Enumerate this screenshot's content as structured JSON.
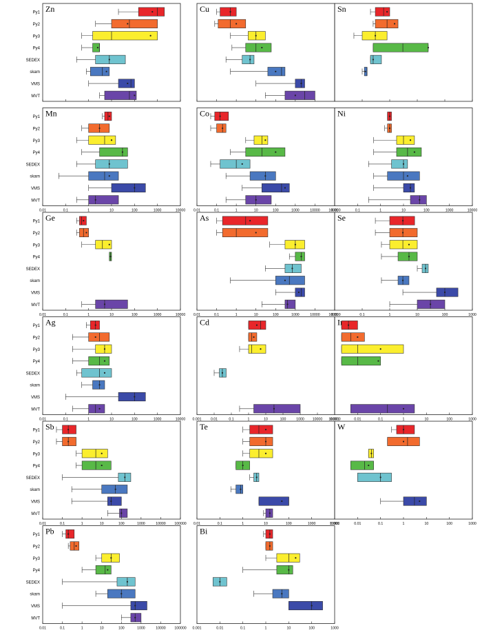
{
  "figure": {
    "categories": [
      "Py1",
      "Py2",
      "Py3",
      "Py4",
      "SEDEX",
      "skarn",
      "VMS",
      "MVT"
    ],
    "series_colors": {
      "Py1": "#e8262a",
      "Py2": "#f26b2e",
      "Py3": "#fbee2e",
      "Py4": "#58b947",
      "SEDEX": "#6fc3cf",
      "skarn": "#4a78c0",
      "VMS": "#3b4aa8",
      "MVT": "#6a45a8"
    }
  },
  "chart_data": [
    {
      "type": "box",
      "element": "Zn",
      "scale": "log",
      "xlim": [
        0.01,
        10000
      ],
      "ticks": [
        "0.01",
        "0.1",
        "1",
        "10",
        "100",
        "1000",
        "10000"
      ],
      "has_axis": false,
      "boxes": {
        "Py1": [
          20,
          150,
          1000,
          2000,
          600
        ],
        "Py2": [
          2,
          10,
          60,
          1000,
          50
        ],
        "Py3": [
          0.5,
          1.5,
          10,
          1000,
          500
        ],
        "Py4": [
          0.5,
          1.5,
          3,
          3,
          2.5
        ],
        "SEDEX": [
          0.3,
          2,
          8,
          40,
          8
        ],
        "skarn": [
          0.8,
          1.2,
          4,
          8,
          6
        ],
        "VMS": [
          1,
          20,
          70,
          100,
          50
        ],
        "MVT": [
          3,
          5,
          60,
          120,
          100
        ]
      }
    },
    {
      "type": "box",
      "element": "Cu",
      "scale": "log",
      "xlim": [
        0.01,
        100000
      ],
      "ticks": [
        "0.01",
        "0.1",
        "1",
        "10",
        "100",
        "1000",
        "10000",
        "100000"
      ],
      "has_axis": false,
      "boxes": {
        "Py1": [
          0.1,
          0.15,
          0.5,
          1,
          0.5
        ],
        "Py2": [
          0.08,
          0.12,
          0.5,
          3,
          1
        ],
        "Py3": [
          0.5,
          4,
          10,
          30,
          10
        ],
        "Py4": [
          0.6,
          3,
          10,
          60,
          20
        ],
        "SEDEX": [
          0.3,
          2,
          5,
          8,
          5
        ],
        "skarn": [
          0.5,
          40,
          200,
          300,
          100
        ],
        "VMS": [
          10,
          1000,
          2000,
          3000,
          2000
        ],
        "MVT": [
          30,
          300,
          3000,
          10000,
          1000
        ]
      }
    },
    {
      "type": "box",
      "element": "Sn",
      "scale": "log",
      "xlim": [
        0.01,
        1000
      ],
      "ticks": [
        "0.01",
        "0.1",
        "1",
        "10",
        "100",
        "1000"
      ],
      "has_axis": false,
      "boxes": {
        "Py1": [
          0.2,
          0.3,
          0.6,
          1,
          0.8
        ],
        "Py2": [
          0.25,
          0.3,
          0.8,
          2,
          1.5
        ],
        "Py3": [
          0.05,
          0.1,
          0.3,
          0.8,
          0.3
        ],
        "Py4": [
          0.25,
          0.25,
          3,
          25,
          25
        ],
        "SEDEX": [
          0.2,
          0.2,
          0.25,
          0.5,
          0.25
        ],
        "skarn": [
          0.1,
          0.12,
          0.15,
          0.15,
          0.13
        ],
        "VMS": null,
        "MVT": null
      }
    },
    {
      "type": "box",
      "element": "Mn",
      "scale": "log",
      "xlim": [
        0.01,
        10000
      ],
      "ticks": [
        "0.01",
        "0.1",
        "1",
        "10",
        "100",
        "1000",
        "10000"
      ],
      "has_axis": true,
      "boxes": {
        "Py1": [
          4,
          5,
          7,
          10,
          8
        ],
        "Py2": [
          0.5,
          1,
          3,
          8,
          3
        ],
        "Py3": [
          0.3,
          1,
          5,
          15,
          10
        ],
        "Py4": [
          0.5,
          3,
          30,
          50,
          30
        ],
        "SEDEX": [
          0.3,
          2,
          8,
          50,
          8
        ],
        "skarn": [
          0.05,
          1,
          5,
          20,
          8
        ],
        "VMS": [
          1,
          10,
          100,
          300,
          100
        ],
        "MVT": [
          0.3,
          1,
          2,
          20,
          2
        ]
      }
    },
    {
      "type": "box",
      "element": "Co",
      "scale": "log",
      "xlim": [
        0.01,
        100000
      ],
      "ticks": [
        "0.01",
        "0.1",
        "1",
        "10",
        "100",
        "1000",
        "10000",
        "100000"
      ],
      "has_axis": true,
      "boxes": {
        "Py1": [
          0.05,
          0.08,
          0.15,
          0.4,
          0.15
        ],
        "Py2": [
          0.05,
          0.1,
          0.2,
          0.3,
          0.2
        ],
        "Py3": [
          3,
          8,
          20,
          40,
          30
        ],
        "Py4": [
          0.5,
          3,
          20,
          300,
          100
        ],
        "SEDEX": [
          0.05,
          0.15,
          1,
          5,
          2
        ],
        "skarn": [
          0.3,
          5,
          30,
          100,
          30
        ],
        "VMS": [
          2,
          20,
          200,
          500,
          300
        ],
        "MVT": [
          0.3,
          3,
          10,
          60,
          10
        ]
      }
    },
    {
      "type": "box",
      "element": "Ni",
      "scale": "log",
      "xlim": [
        0.01,
        10000
      ],
      "ticks": [
        "0.01",
        "0.1",
        "1",
        "10",
        "100",
        "1000",
        "10000"
      ],
      "has_axis": true,
      "boxes": {
        "Py1": [
          2,
          2,
          2.5,
          3,
          2.5
        ],
        "Py2": [
          1.5,
          2,
          2.5,
          3,
          2.5
        ],
        "Py3": [
          0.5,
          5,
          10,
          30,
          20
        ],
        "Py4": [
          0.5,
          5,
          15,
          60,
          30
        ],
        "SEDEX": [
          0.3,
          3,
          10,
          15,
          10
        ],
        "skarn": [
          0.5,
          2,
          10,
          50,
          15
        ],
        "VMS": [
          0.5,
          10,
          20,
          30,
          20
        ],
        "MVT": [
          0.3,
          20,
          50,
          100,
          50
        ]
      }
    },
    {
      "type": "box",
      "element": "Ge",
      "scale": "log",
      "xlim": [
        0.01,
        10000
      ],
      "ticks": [
        "0.01",
        "0.1",
        "1",
        "10",
        "100",
        "1000",
        "10000"
      ],
      "has_axis": true,
      "boxes": {
        "Py1": [
          0.3,
          0.4,
          0.5,
          0.8,
          0.6
        ],
        "Py2": [
          0.3,
          0.4,
          0.6,
          1,
          0.8
        ],
        "Py3": [
          0.5,
          2,
          4,
          10,
          8
        ],
        "Py4": [
          8,
          8,
          9,
          10,
          9
        ],
        "SEDEX": null,
        "skarn": null,
        "VMS": null,
        "MVT": [
          0.5,
          2,
          5,
          50,
          5
        ]
      }
    },
    {
      "type": "box",
      "element": "As",
      "scale": "log",
      "xlim": [
        0.01,
        100000
      ],
      "ticks": [
        "0.01",
        "0.1",
        "1",
        "10",
        "100",
        "1000",
        "10000",
        "100000"
      ],
      "has_axis": true,
      "boxes": {
        "Py1": [
          0.1,
          0.2,
          3,
          40,
          5
        ],
        "Py2": [
          0.1,
          0.2,
          1,
          40,
          10
        ],
        "Py3": [
          50,
          300,
          1000,
          3000,
          1000
        ],
        "Py4": [
          500,
          1000,
          2000,
          3000,
          2000
        ],
        "SEDEX": [
          30,
          300,
          700,
          2000,
          700
        ],
        "skarn": [
          0.5,
          100,
          500,
          3000,
          300
        ],
        "VMS": [
          100,
          1000,
          2000,
          3000,
          1500
        ],
        "MVT": [
          20,
          300,
          400,
          1000,
          400
        ]
      }
    },
    {
      "type": "box",
      "element": "Se",
      "scale": "log",
      "xlim": [
        0.01,
        1000
      ],
      "ticks": [
        "0.01",
        "0.1",
        "1",
        "10",
        "100",
        "1000"
      ],
      "has_axis": true,
      "boxes": {
        "Py1": [
          0.3,
          1,
          3,
          8,
          3
        ],
        "Py2": [
          0.3,
          1,
          3,
          10,
          3
        ],
        "Py3": [
          0.5,
          1,
          3,
          10,
          5
        ],
        "Py4": [
          0.5,
          2,
          5,
          10,
          5
        ],
        "SEDEX": [
          10,
          15,
          20,
          25,
          20
        ],
        "skarn": [
          0.5,
          2,
          3,
          5,
          3
        ],
        "VMS": [
          3,
          50,
          100,
          300,
          100
        ],
        "MVT": [
          1,
          10,
          30,
          100,
          30
        ]
      }
    },
    {
      "type": "box",
      "element": "Ag",
      "scale": "log",
      "xlim": [
        0.01,
        10000
      ],
      "ticks": [
        "0.01",
        "0.1",
        "1",
        "10",
        "100",
        "1000",
        "10000"
      ],
      "has_axis": true,
      "boxes": {
        "Py1": [
          0.8,
          1.2,
          2,
          3,
          2
        ],
        "Py2": [
          0.2,
          1,
          3,
          8,
          2
        ],
        "Py3": [
          0.2,
          2,
          5,
          10,
          5
        ],
        "Py4": [
          0.2,
          1,
          3,
          8,
          5
        ],
        "SEDEX": [
          0.3,
          0.5,
          3,
          10,
          5
        ],
        "skarn": [
          0.5,
          1.5,
          3,
          5,
          3
        ],
        "VMS": [
          0.1,
          20,
          100,
          300,
          100
        ],
        "MVT": [
          0.2,
          1,
          2,
          5,
          3
        ]
      }
    },
    {
      "type": "box",
      "element": "Cd",
      "scale": "log",
      "xlim": [
        0.001,
        100000
      ],
      "ticks": [
        "0.001",
        "0.01",
        "0.1",
        "1",
        "10",
        "100",
        "1000",
        "10000",
        "100000"
      ],
      "has_axis": true,
      "boxes": {
        "Py1": [
          1,
          1,
          5,
          10,
          3
        ],
        "Py2": [
          1,
          1,
          1.5,
          3,
          2
        ],
        "Py3": [
          0.3,
          1,
          1.5,
          10,
          5
        ],
        "Py4": null,
        "SEDEX": [
          0.01,
          0.02,
          0.03,
          0.05,
          0.03
        ],
        "skarn": null,
        "VMS": null,
        "MVT": [
          0.3,
          2,
          30,
          1000,
          30
        ]
      }
    },
    {
      "type": "box",
      "element": "In",
      "scale": "log",
      "xlim": [
        0.001,
        1000
      ],
      "ticks": [
        "0.001",
        "0.01",
        "0.1",
        "1",
        "10",
        "100",
        "1000"
      ],
      "has_axis": true,
      "boxes": {
        "Py1": [
          0.002,
          0.002,
          0.004,
          0.01,
          0.004
        ],
        "Py2": [
          0.002,
          0.002,
          0.005,
          0.02,
          0.01
        ],
        "Py3": [
          0.002,
          0.002,
          0.01,
          1,
          0.1
        ],
        "Py4": [
          0.002,
          0.002,
          0.01,
          0.1,
          0.08
        ],
        "SEDEX": null,
        "skarn": null,
        "VMS": null,
        "MVT": [
          0.005,
          0.005,
          0.2,
          3,
          1
        ]
      }
    },
    {
      "type": "box",
      "element": "Sb",
      "scale": "log",
      "xlim": [
        0.01,
        100000
      ],
      "ticks": [
        "0.01",
        "0.1",
        "1",
        "10",
        "100",
        "1000",
        "10000",
        "100000"
      ],
      "has_axis": true,
      "boxes": {
        "Py1": [
          0.05,
          0.1,
          0.2,
          0.5,
          0.2
        ],
        "Py2": [
          0.05,
          0.1,
          0.2,
          0.5,
          0.2
        ],
        "Py3": [
          0.5,
          1,
          5,
          20,
          10
        ],
        "Py4": [
          0.5,
          1,
          5,
          30,
          10
        ],
        "SEDEX": [
          0.1,
          70,
          150,
          300,
          150
        ],
        "skarn": [
          0.3,
          10,
          50,
          200,
          50
        ],
        "VMS": [
          0.3,
          20,
          30,
          100,
          30
        ],
        "MVT": [
          20,
          80,
          100,
          200,
          100
        ]
      }
    },
    {
      "type": "box",
      "element": "Te",
      "scale": "log",
      "xlim": [
        0.01,
        10000
      ],
      "ticks": [
        "0.01",
        "0.1",
        "1",
        "10",
        "100",
        "1000",
        "10000"
      ],
      "has_axis": true,
      "boxes": {
        "Py1": [
          1,
          2,
          5,
          20,
          10
        ],
        "Py2": [
          1,
          2,
          10,
          20,
          10
        ],
        "Py3": [
          1,
          2,
          5,
          20,
          10
        ],
        "Py4": [
          0.5,
          0.5,
          1,
          2,
          1
        ],
        "SEDEX": [
          2,
          3,
          4,
          5,
          4
        ],
        "skarn": [
          0.3,
          0.5,
          0.8,
          1,
          0.8
        ],
        "VMS": [
          5,
          5,
          100,
          100,
          50
        ],
        "MVT": [
          8,
          10,
          15,
          20,
          15
        ]
      }
    },
    {
      "type": "box",
      "element": "W",
      "scale": "log",
      "xlim": [
        0.001,
        1000
      ],
      "ticks": [
        "0.001",
        "0.01",
        "0.1",
        "1",
        "10",
        "100",
        "1000"
      ],
      "has_axis": true,
      "boxes": {
        "Py1": [
          0.3,
          0.5,
          1,
          3,
          1
        ],
        "Py2": [
          0.2,
          0.2,
          1.5,
          5,
          1
        ],
        "Py3": [
          0.03,
          0.03,
          0.04,
          0.05,
          0.04
        ],
        "Py4": [
          0.005,
          0.005,
          0.02,
          0.05,
          0.03
        ],
        "SEDEX": [
          0.01,
          0.01,
          0.1,
          0.3,
          0.1
        ],
        "skarn": null,
        "VMS": [
          0.1,
          1,
          3,
          10,
          5
        ],
        "MVT": null
      }
    },
    {
      "type": "box",
      "element": "Pb",
      "scale": "log",
      "xlim": [
        0.01,
        100000
      ],
      "ticks": [
        "0.01",
        "0.1",
        "1",
        "10",
        "100",
        "1000",
        "10000",
        "100000"
      ],
      "has_axis": true,
      "boxes": {
        "Py1": [
          0.1,
          0.15,
          0.2,
          0.4,
          0.2
        ],
        "Py2": [
          0.2,
          0.25,
          0.4,
          0.7,
          0.5
        ],
        "Py3": [
          5,
          10,
          30,
          80,
          30
        ],
        "Py4": [
          1,
          5,
          15,
          30,
          20
        ],
        "SEDEX": [
          0.1,
          60,
          200,
          500,
          200
        ],
        "skarn": [
          5,
          20,
          100,
          500,
          100
        ],
        "VMS": [
          0.1,
          300,
          500,
          2000,
          500
        ],
        "MVT": [
          100,
          300,
          500,
          1000,
          500
        ]
      }
    },
    {
      "type": "box",
      "element": "Bi",
      "scale": "log",
      "xlim": [
        0.001,
        1000
      ],
      "ticks": [
        "0.001",
        "0.01",
        "0.1",
        "1",
        "10",
        "100",
        "1000"
      ],
      "has_axis": true,
      "boxes": {
        "Py1": [
          0.8,
          1,
          1.5,
          2,
          1.5
        ],
        "Py2": [
          1,
          1,
          1.5,
          2,
          1.5
        ],
        "Py3": [
          1,
          3,
          10,
          30,
          20
        ],
        "Py4": [
          0.1,
          3,
          10,
          15,
          10
        ],
        "SEDEX": [
          0.005,
          0.005,
          0.01,
          0.02,
          0.01
        ],
        "skarn": [
          0.3,
          2,
          5,
          10,
          5
        ],
        "VMS": [
          10,
          10,
          100,
          300,
          100
        ],
        "MVT": null
      }
    }
  ]
}
